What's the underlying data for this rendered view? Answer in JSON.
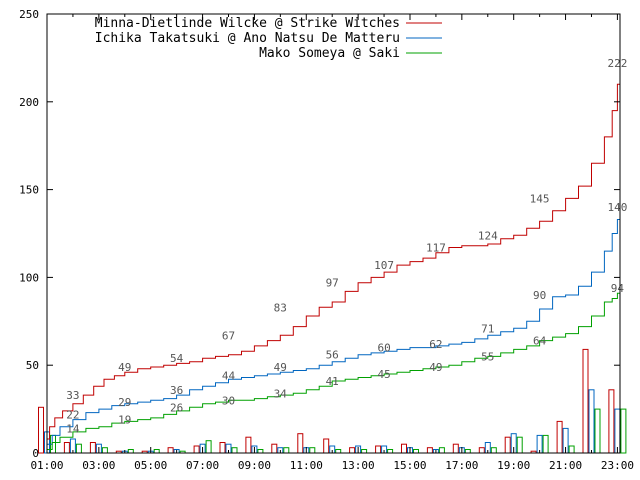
{
  "chart_data": {
    "type": "line",
    "ylim": [
      0,
      250
    ],
    "yticks": [
      0,
      50,
      100,
      150,
      200,
      250
    ],
    "xlim_hours": [
      1,
      23.1
    ],
    "xticks": [
      "01:00",
      "03:00",
      "05:00",
      "07:00",
      "09:00",
      "11:00",
      "13:00",
      "15:00",
      "17:00",
      "19:00",
      "21:00",
      "23:00"
    ],
    "grid": false,
    "legend_position": "top-left",
    "series": [
      {
        "name": "Minna-Dietlinde Wilcke @ Strike Witches",
        "color": "#c00000",
        "points": [
          [
            1.0,
            8
          ],
          [
            1.1,
            15
          ],
          [
            1.3,
            20
          ],
          [
            1.6,
            24
          ],
          [
            2.0,
            28
          ],
          [
            2.4,
            33
          ],
          [
            2.8,
            38
          ],
          [
            3.2,
            42
          ],
          [
            3.6,
            44
          ],
          [
            4.0,
            46
          ],
          [
            4.5,
            48
          ],
          [
            5.0,
            49
          ],
          [
            5.5,
            50
          ],
          [
            6.0,
            51
          ],
          [
            6.5,
            52
          ],
          [
            7.0,
            54
          ],
          [
            7.5,
            55
          ],
          [
            8.0,
            56
          ],
          [
            8.5,
            58
          ],
          [
            9.0,
            61
          ],
          [
            9.5,
            64
          ],
          [
            10.0,
            67
          ],
          [
            10.5,
            72
          ],
          [
            11.0,
            78
          ],
          [
            11.5,
            83
          ],
          [
            12.0,
            86
          ],
          [
            12.5,
            92
          ],
          [
            13.0,
            97
          ],
          [
            13.5,
            100
          ],
          [
            14.0,
            103
          ],
          [
            14.5,
            107
          ],
          [
            15.0,
            109
          ],
          [
            15.5,
            111
          ],
          [
            16.0,
            114
          ],
          [
            16.5,
            117
          ],
          [
            17.0,
            118
          ],
          [
            17.5,
            118
          ],
          [
            18.0,
            119
          ],
          [
            18.5,
            122
          ],
          [
            19.0,
            124
          ],
          [
            19.5,
            128
          ],
          [
            20.0,
            132
          ],
          [
            20.5,
            138
          ],
          [
            21.0,
            145
          ],
          [
            21.5,
            152
          ],
          [
            22.0,
            165
          ],
          [
            22.5,
            180
          ],
          [
            22.8,
            195
          ],
          [
            23.0,
            210
          ],
          [
            23.1,
            222
          ]
        ],
        "labels": [
          [
            2.0,
            33
          ],
          [
            4.0,
            49
          ],
          [
            6.0,
            54
          ],
          [
            8.0,
            67
          ],
          [
            10.0,
            83
          ],
          [
            12.0,
            97
          ],
          [
            14.0,
            107
          ],
          [
            16.0,
            117
          ],
          [
            18.0,
            124
          ],
          [
            20.0,
            145
          ],
          [
            23.0,
            222
          ]
        ]
      },
      {
        "name": "Ichika Takatsuki @ Ano Natsu De Matteru",
        "color": "#0066c0",
        "points": [
          [
            1.0,
            5
          ],
          [
            1.2,
            10
          ],
          [
            1.5,
            15
          ],
          [
            2.0,
            19
          ],
          [
            2.5,
            23
          ],
          [
            3.0,
            25
          ],
          [
            3.5,
            27
          ],
          [
            4.0,
            28
          ],
          [
            4.5,
            29
          ],
          [
            5.0,
            30
          ],
          [
            5.5,
            31
          ],
          [
            6.0,
            33
          ],
          [
            6.5,
            36
          ],
          [
            7.0,
            38
          ],
          [
            7.5,
            40
          ],
          [
            8.0,
            42
          ],
          [
            8.5,
            43
          ],
          [
            9.0,
            44
          ],
          [
            9.5,
            45
          ],
          [
            10.0,
            46
          ],
          [
            10.5,
            47
          ],
          [
            11.0,
            48
          ],
          [
            11.5,
            50
          ],
          [
            12.0,
            52
          ],
          [
            12.5,
            54
          ],
          [
            13.0,
            56
          ],
          [
            13.5,
            57
          ],
          [
            14.0,
            58
          ],
          [
            14.5,
            59
          ],
          [
            15.0,
            60
          ],
          [
            15.5,
            60
          ],
          [
            16.0,
            61
          ],
          [
            16.5,
            62
          ],
          [
            17.0,
            63
          ],
          [
            17.5,
            65
          ],
          [
            18.0,
            67
          ],
          [
            18.5,
            69
          ],
          [
            19.0,
            71
          ],
          [
            19.5,
            75
          ],
          [
            20.0,
            82
          ],
          [
            20.5,
            89
          ],
          [
            21.0,
            90
          ],
          [
            21.5,
            95
          ],
          [
            22.0,
            103
          ],
          [
            22.5,
            115
          ],
          [
            22.8,
            125
          ],
          [
            23.0,
            133
          ],
          [
            23.1,
            140
          ]
        ],
        "labels": [
          [
            2.0,
            22
          ],
          [
            4.0,
            29
          ],
          [
            6.0,
            36
          ],
          [
            8.0,
            44
          ],
          [
            10.0,
            49
          ],
          [
            12.0,
            56
          ],
          [
            14.0,
            60
          ],
          [
            16.0,
            62
          ],
          [
            18.0,
            71
          ],
          [
            20.0,
            90
          ],
          [
            23.0,
            140
          ]
        ]
      },
      {
        "name": "Mako Someya @ Saki",
        "color": "#00a000",
        "points": [
          [
            1.0,
            2
          ],
          [
            1.2,
            6
          ],
          [
            1.5,
            9
          ],
          [
            2.0,
            12
          ],
          [
            2.5,
            14
          ],
          [
            3.0,
            15
          ],
          [
            3.5,
            17
          ],
          [
            4.0,
            18
          ],
          [
            4.5,
            19
          ],
          [
            5.0,
            20
          ],
          [
            5.5,
            22
          ],
          [
            6.0,
            24
          ],
          [
            6.5,
            26
          ],
          [
            7.0,
            28
          ],
          [
            7.5,
            29
          ],
          [
            8.0,
            30
          ],
          [
            8.5,
            30
          ],
          [
            9.0,
            31
          ],
          [
            9.5,
            32
          ],
          [
            10.0,
            33
          ],
          [
            10.5,
            34
          ],
          [
            11.0,
            36
          ],
          [
            11.5,
            38
          ],
          [
            12.0,
            41
          ],
          [
            12.5,
            42
          ],
          [
            13.0,
            43
          ],
          [
            13.5,
            44
          ],
          [
            14.0,
            45
          ],
          [
            14.5,
            46
          ],
          [
            15.0,
            47
          ],
          [
            15.5,
            48
          ],
          [
            16.0,
            49
          ],
          [
            16.5,
            50
          ],
          [
            17.0,
            52
          ],
          [
            17.5,
            54
          ],
          [
            18.0,
            55
          ],
          [
            18.5,
            57
          ],
          [
            19.0,
            59
          ],
          [
            19.5,
            61
          ],
          [
            20.0,
            64
          ],
          [
            20.5,
            66
          ],
          [
            21.0,
            68
          ],
          [
            21.5,
            72
          ],
          [
            22.0,
            78
          ],
          [
            22.5,
            86
          ],
          [
            22.8,
            88
          ],
          [
            23.0,
            91
          ],
          [
            23.1,
            94
          ]
        ],
        "labels": [
          [
            2.0,
            14
          ],
          [
            4.0,
            19
          ],
          [
            6.0,
            26
          ],
          [
            8.0,
            30
          ],
          [
            10.0,
            34
          ],
          [
            12.0,
            41
          ],
          [
            14.0,
            45
          ],
          [
            16.0,
            49
          ],
          [
            18.0,
            55
          ],
          [
            20.0,
            64
          ],
          [
            23.0,
            94
          ]
        ]
      }
    ],
    "bars": {
      "series_order": [
        "Minna-Dietlinde Wilcke @ Strike Witches",
        "Ichika Takatsuki @ Ano Natsu De Matteru",
        "Mako Someya @ Saki"
      ],
      "hours": [
        1,
        2,
        3,
        4,
        5,
        6,
        7,
        8,
        9,
        10,
        11,
        12,
        13,
        14,
        15,
        16,
        17,
        18,
        19,
        20,
        21,
        22,
        23
      ],
      "values": [
        [
          26,
          6,
          6,
          1,
          1,
          3,
          4,
          6,
          9,
          5,
          11,
          8,
          3,
          4,
          5,
          3,
          5,
          3,
          9,
          1,
          18,
          59,
          36
        ],
        [
          12,
          8,
          5,
          1,
          1,
          2,
          5,
          5,
          4,
          3,
          3,
          4,
          4,
          4,
          3,
          2,
          3,
          6,
          11,
          10,
          14,
          36,
          25
        ],
        [
          10,
          5,
          3,
          2,
          2,
          1,
          7,
          3,
          2,
          3,
          3,
          2,
          2,
          2,
          2,
          3,
          2,
          3,
          9,
          10,
          4,
          25,
          25
        ]
      ]
    }
  }
}
